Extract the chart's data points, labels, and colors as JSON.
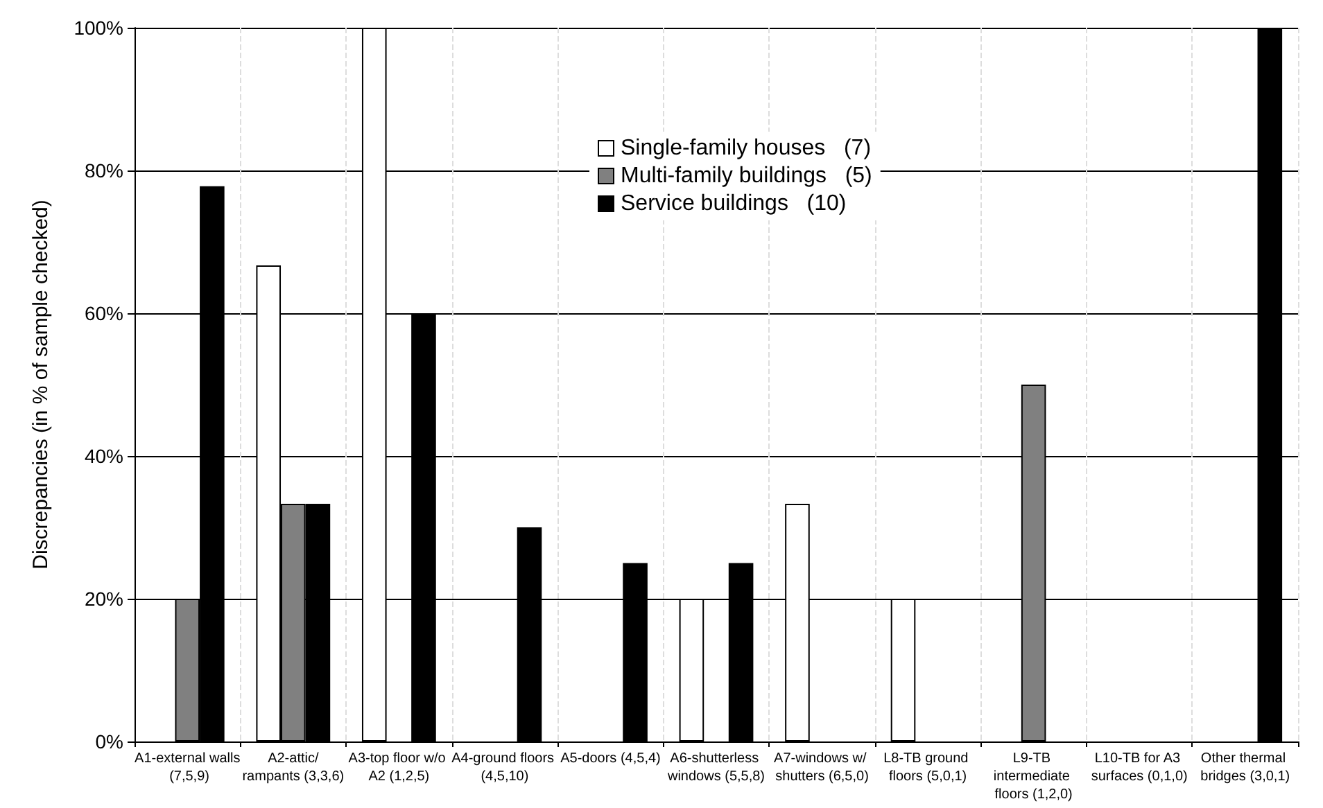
{
  "chart_data": {
    "type": "bar",
    "ylabel": "Discrepancies (in % of sample checked)",
    "categories": [
      "A1-external walls (7,5,9)",
      "A2-attic/rampants (3,3,6)",
      "A3-top floor w/o A2 (1,2,5)",
      "A4-ground floors (4,5,10)",
      "A5-doors (4,5,4)",
      "A6-shutterless windows (5,5,8)",
      "A7-windows w/ shutters (6,5,0)",
      "L8-TB ground floors (5,0,1)",
      "L9-TB intermediate floors (1,2,0)",
      "L10-TB for A3 surfaces (0,1,0)",
      "Other thermal bridges (3,0,1)"
    ],
    "series": [
      {
        "name": "Single-family houses   (7)",
        "color": "#ffffff",
        "values": [
          0,
          66.7,
          100,
          0,
          0,
          20,
          33.3,
          20,
          0,
          0,
          0
        ]
      },
      {
        "name": "Multi-family buildings   (5)",
        "color": "#808080",
        "values": [
          20,
          33.3,
          0,
          0,
          0,
          0,
          0,
          0,
          50,
          0,
          0
        ]
      },
      {
        "name": "Service buildings   (10)",
        "color": "#000000",
        "values": [
          77.8,
          33.3,
          60,
          30,
          25,
          25,
          0,
          0,
          0,
          0,
          100
        ]
      }
    ],
    "ylim": [
      0,
      100
    ],
    "yticks": [
      {
        "value": 0,
        "label": "0%"
      },
      {
        "value": 20,
        "label": "20%"
      },
      {
        "value": 40,
        "label": "40%"
      },
      {
        "value": 60,
        "label": "60%"
      },
      {
        "value": 80,
        "label": "80%"
      },
      {
        "value": 100,
        "label": "100%"
      }
    ],
    "grid": true,
    "legend": "top"
  }
}
